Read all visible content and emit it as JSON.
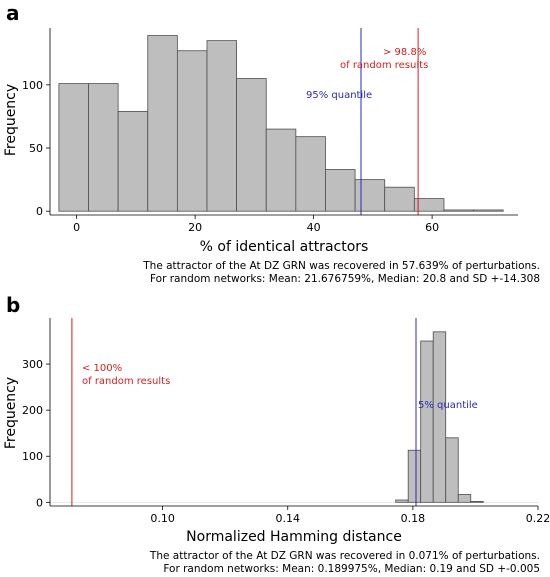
{
  "colors": {
    "bar_fill": "#bebebe",
    "bar_stroke": "#4d4d4d",
    "blue": "#2b2bb0",
    "red": "#d42020"
  },
  "chart_data": [
    {
      "type": "bar",
      "panel_label": "a",
      "xlabel": "% of identical attractors",
      "ylabel": "Frequency",
      "xlim": [
        -4.5,
        74.5
      ],
      "ylim": [
        -3,
        145
      ],
      "xticks": [
        0,
        20,
        40,
        60
      ],
      "yticks": [
        0,
        50,
        100
      ],
      "bin_width": 5,
      "bins": [
        {
          "x0": -3,
          "x1": 2,
          "count": 101
        },
        {
          "x0": 2,
          "x1": 7,
          "count": 101
        },
        {
          "x0": 7,
          "x1": 12,
          "count": 79
        },
        {
          "x0": 12,
          "x1": 17,
          "count": 139
        },
        {
          "x0": 17,
          "x1": 22,
          "count": 127
        },
        {
          "x0": 22,
          "x1": 27,
          "count": 135
        },
        {
          "x0": 27,
          "x1": 32,
          "count": 105
        },
        {
          "x0": 32,
          "x1": 37,
          "count": 65
        },
        {
          "x0": 37,
          "x1": 42,
          "count": 59
        },
        {
          "x0": 42,
          "x1": 47,
          "count": 33
        },
        {
          "x0": 47,
          "x1": 52,
          "count": 25
        },
        {
          "x0": 52,
          "x1": 57,
          "count": 19
        },
        {
          "x0": 57,
          "x1": 62,
          "count": 10
        },
        {
          "x0": 62,
          "x1": 67,
          "count": 1
        },
        {
          "x0": 67,
          "x1": 72,
          "count": 1
        }
      ],
      "vlines": [
        {
          "name": "quantile-line",
          "x": 48.0,
          "color": "blue",
          "label": "95% quantile"
        },
        {
          "name": "observed-line",
          "x": 57.639,
          "color": "red",
          "label": [
            "> 98.8%",
            "of random results"
          ]
        }
      ],
      "caption": [
        "The attractor of the At DZ GRN was recovered in 57.639% of perturbations.",
        "For random networks: Mean: 21.676759%, Median: 20.8 and SD +-14.308"
      ]
    },
    {
      "type": "bar",
      "panel_label": "b",
      "xlabel": "Normalized Hamming distance",
      "ylabel": "Frequency",
      "xlim": [
        0.064,
        0.22
      ],
      "ylim": [
        -8,
        400
      ],
      "xticks": [
        "0.10",
        "0.14",
        "0.18",
        "0.22"
      ],
      "yticks": [
        0,
        100,
        200,
        300
      ],
      "bins": [
        {
          "x0": 0.1745,
          "x1": 0.1785,
          "count": 5
        },
        {
          "x0": 0.1785,
          "x1": 0.1825,
          "count": 113
        },
        {
          "x0": 0.1825,
          "x1": 0.1865,
          "count": 350
        },
        {
          "x0": 0.1865,
          "x1": 0.1905,
          "count": 370
        },
        {
          "x0": 0.1905,
          "x1": 0.1945,
          "count": 140
        },
        {
          "x0": 0.1945,
          "x1": 0.1985,
          "count": 17
        },
        {
          "x0": 0.1985,
          "x1": 0.2025,
          "count": 2
        }
      ],
      "vlines": [
        {
          "name": "quantile-line",
          "x": 0.181,
          "color": "blue",
          "label": "5% quantile"
        },
        {
          "name": "observed-line",
          "x": 0.071,
          "color": "red",
          "label": [
            "< 100%",
            "of random results"
          ]
        }
      ],
      "caption": [
        "The attractor of the At DZ GRN was recovered in 0.071% of perturbations.",
        "For random networks: Mean: 0.189975%, Median: 0.19 and SD +-0.005"
      ]
    }
  ]
}
